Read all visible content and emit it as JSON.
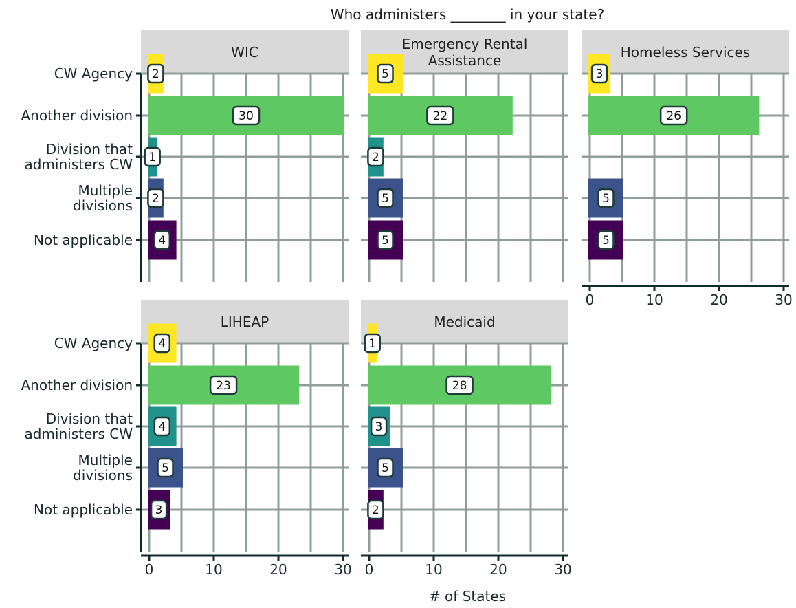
{
  "chart_data": {
    "type": "bar",
    "orientation": "horizontal",
    "title": "Who administers ________ in your state?",
    "xlabel": "# of States",
    "xlim": [
      0,
      31
    ],
    "xticks": [
      0,
      10,
      20,
      30
    ],
    "grid": true,
    "legend": "none",
    "categories": [
      "CW Agency",
      "Another division",
      "Division that administers CW",
      "Multiple divisions",
      "Not applicable"
    ],
    "category_display": [
      [
        "CW Agency"
      ],
      [
        "Another division"
      ],
      [
        "Division that",
        "administers CW"
      ],
      [
        "Multiple",
        "divisions"
      ],
      [
        "Not applicable"
      ]
    ],
    "category_colors": [
      "#fde725",
      "#5ec962",
      "#21918c",
      "#3b528b",
      "#440154"
    ],
    "panels": [
      {
        "name": "WIC",
        "strip": [
          "WIC"
        ],
        "values": [
          2,
          30,
          1,
          2,
          4
        ]
      },
      {
        "name": "Emergency Rental Assistance",
        "strip": [
          "Emergency Rental",
          "Assistance"
        ],
        "values": [
          5,
          22,
          2,
          5,
          5
        ]
      },
      {
        "name": "Homeless Services",
        "strip": [
          "Homeless Services"
        ],
        "values": [
          3,
          26,
          null,
          5,
          5
        ]
      },
      {
        "name": "LIHEAP",
        "strip": [
          "LIHEAP"
        ],
        "values": [
          4,
          23,
          4,
          5,
          3
        ]
      },
      {
        "name": "Medicaid",
        "strip": [
          "Medicaid"
        ],
        "values": [
          1,
          28,
          3,
          5,
          2
        ]
      }
    ]
  },
  "colors": {
    "strip_bg": "#d9d9d9",
    "grid": "#8f9e9b",
    "axis": "#0f2c2a",
    "label_border": "#1e3a3a"
  }
}
